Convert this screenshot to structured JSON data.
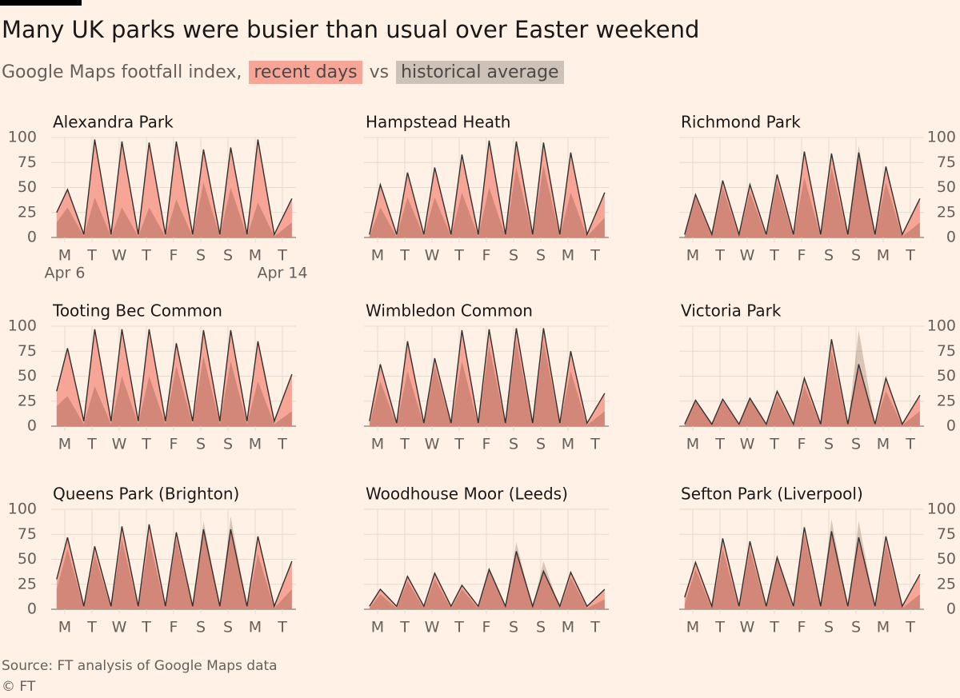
{
  "header": {
    "title": "Many UK parks were busier than usual over Easter weekend",
    "subtitle": "Google Maps footfall index,",
    "joiner": "vs",
    "legend": [
      {
        "name": "recent days",
        "color": "#f7a597"
      },
      {
        "name": "historical average",
        "color": "#cdc1b8"
      }
    ]
  },
  "chart_data": [
    {
      "type": "area",
      "title": "Alexandra Park",
      "y_axis": "left",
      "grid": true,
      "x": [
        0.2,
        0.6,
        1.2,
        1.6,
        2.2,
        2.6,
        3.2,
        3.6,
        4.2,
        4.6,
        5.2,
        5.6,
        6.2,
        6.6,
        7.2,
        7.6,
        8.2,
        8.85
      ],
      "recent": [
        25,
        48,
        3,
        98,
        3,
        96,
        3,
        95,
        3,
        96,
        3,
        88,
        3,
        90,
        3,
        98,
        3,
        39
      ],
      "historical": [
        15,
        30,
        1,
        40,
        1,
        30,
        1,
        30,
        1,
        38,
        1,
        55,
        1,
        50,
        1,
        35,
        1,
        15
      ],
      "xlim": [
        0,
        9
      ],
      "ylim": [
        0,
        100
      ],
      "yticks": [
        0,
        25,
        50,
        75,
        100
      ],
      "xticks": [
        {
          "value": 0.5,
          "label": "M"
        },
        {
          "value": 1.5,
          "label": "T"
        },
        {
          "value": 2.5,
          "label": "W"
        },
        {
          "value": 3.5,
          "label": "T"
        },
        {
          "value": 4.5,
          "label": "F"
        },
        {
          "value": 5.5,
          "label": "S"
        },
        {
          "value": 6.5,
          "label": "S"
        },
        {
          "value": 7.5,
          "label": "M"
        },
        {
          "value": 8.5,
          "label": "T"
        }
      ],
      "xtick_dates": [
        {
          "value": 0.5,
          "label": "Apr 6"
        },
        {
          "value": 8.5,
          "label": "Apr 14"
        }
      ]
    },
    {
      "type": "area",
      "title": "Hampstead Heath",
      "y_axis": "none",
      "grid": true,
      "x": [
        0.2,
        0.6,
        1.2,
        1.6,
        2.2,
        2.6,
        3.2,
        3.6,
        4.2,
        4.6,
        5.2,
        5.6,
        6.2,
        6.6,
        7.2,
        7.6,
        8.2,
        8.85
      ],
      "recent": [
        3,
        53,
        3,
        65,
        3,
        70,
        3,
        83,
        3,
        97,
        3,
        96,
        3,
        95,
        3,
        85,
        3,
        45
      ],
      "historical": [
        1,
        30,
        1,
        40,
        1,
        40,
        1,
        45,
        1,
        50,
        1,
        70,
        1,
        72,
        1,
        45,
        1,
        20
      ],
      "xlim": [
        0,
        9
      ],
      "ylim": [
        0,
        100
      ],
      "yticks": [
        0,
        25,
        50,
        75,
        100
      ],
      "xticks": [
        {
          "value": 0.5,
          "label": "M"
        },
        {
          "value": 1.5,
          "label": "T"
        },
        {
          "value": 2.5,
          "label": "W"
        },
        {
          "value": 3.5,
          "label": "T"
        },
        {
          "value": 4.5,
          "label": "F"
        },
        {
          "value": 5.5,
          "label": "S"
        },
        {
          "value": 6.5,
          "label": "S"
        },
        {
          "value": 7.5,
          "label": "M"
        },
        {
          "value": 8.5,
          "label": "T"
        }
      ]
    },
    {
      "type": "area",
      "title": "Richmond Park",
      "y_axis": "right",
      "grid": true,
      "x": [
        0.2,
        0.6,
        1.2,
        1.6,
        2.2,
        2.6,
        3.2,
        3.6,
        4.2,
        4.6,
        5.2,
        5.6,
        6.2,
        6.6,
        7.2,
        7.6,
        8.2,
        8.85
      ],
      "recent": [
        3,
        43,
        3,
        57,
        3,
        53,
        3,
        63,
        3,
        86,
        3,
        84,
        3,
        85,
        3,
        71,
        3,
        39
      ],
      "historical": [
        1,
        40,
        1,
        50,
        1,
        45,
        1,
        55,
        1,
        60,
        1,
        70,
        1,
        92,
        1,
        55,
        1,
        15
      ],
      "xlim": [
        0,
        9
      ],
      "ylim": [
        0,
        100
      ],
      "yticks": [
        0,
        25,
        50,
        75,
        100
      ],
      "xticks": [
        {
          "value": 0.5,
          "label": "M"
        },
        {
          "value": 1.5,
          "label": "T"
        },
        {
          "value": 2.5,
          "label": "W"
        },
        {
          "value": 3.5,
          "label": "T"
        },
        {
          "value": 4.5,
          "label": "F"
        },
        {
          "value": 5.5,
          "label": "S"
        },
        {
          "value": 6.5,
          "label": "S"
        },
        {
          "value": 7.5,
          "label": "M"
        },
        {
          "value": 8.5,
          "label": "T"
        }
      ]
    },
    {
      "type": "area",
      "title": "Tooting Bec Common",
      "y_axis": "left",
      "grid": true,
      "x": [
        0.2,
        0.6,
        1.2,
        1.6,
        2.2,
        2.6,
        3.2,
        3.6,
        4.2,
        4.6,
        5.2,
        5.6,
        6.2,
        6.6,
        7.2,
        7.6,
        8.2,
        8.85
      ],
      "recent": [
        35,
        78,
        5,
        97,
        5,
        97,
        5,
        97,
        5,
        83,
        5,
        96,
        5,
        96,
        5,
        85,
        5,
        52
      ],
      "historical": [
        20,
        30,
        2,
        40,
        2,
        50,
        2,
        50,
        2,
        60,
        2,
        70,
        2,
        65,
        2,
        45,
        2,
        15
      ],
      "xlim": [
        0,
        9
      ],
      "ylim": [
        0,
        100
      ],
      "yticks": [
        0,
        25,
        50,
        75,
        100
      ],
      "xticks": [
        {
          "value": 0.5,
          "label": "M"
        },
        {
          "value": 1.5,
          "label": "T"
        },
        {
          "value": 2.5,
          "label": "W"
        },
        {
          "value": 3.5,
          "label": "T"
        },
        {
          "value": 4.5,
          "label": "F"
        },
        {
          "value": 5.5,
          "label": "S"
        },
        {
          "value": 6.5,
          "label": "S"
        },
        {
          "value": 7.5,
          "label": "M"
        },
        {
          "value": 8.5,
          "label": "T"
        }
      ]
    },
    {
      "type": "area",
      "title": "Wimbledon Common",
      "y_axis": "none",
      "grid": true,
      "x": [
        0.2,
        0.6,
        1.2,
        1.6,
        2.2,
        2.6,
        3.2,
        3.6,
        4.2,
        4.6,
        5.2,
        5.6,
        6.2,
        6.6,
        7.2,
        7.6,
        8.2,
        8.85
      ],
      "recent": [
        5,
        62,
        3,
        85,
        3,
        68,
        3,
        96,
        3,
        97,
        3,
        98,
        3,
        98,
        3,
        75,
        3,
        33
      ],
      "historical": [
        1,
        45,
        1,
        55,
        1,
        60,
        1,
        65,
        1,
        80,
        1,
        85,
        1,
        85,
        1,
        55,
        1,
        15
      ],
      "xlim": [
        0,
        9
      ],
      "ylim": [
        0,
        100
      ],
      "yticks": [
        0,
        25,
        50,
        75,
        100
      ],
      "xticks": [
        {
          "value": 0.5,
          "label": "M"
        },
        {
          "value": 1.5,
          "label": "T"
        },
        {
          "value": 2.5,
          "label": "W"
        },
        {
          "value": 3.5,
          "label": "T"
        },
        {
          "value": 4.5,
          "label": "F"
        },
        {
          "value": 5.5,
          "label": "S"
        },
        {
          "value": 6.5,
          "label": "S"
        },
        {
          "value": 7.5,
          "label": "M"
        },
        {
          "value": 8.5,
          "label": "T"
        }
      ]
    },
    {
      "type": "area",
      "title": "Victoria Park",
      "y_axis": "right",
      "grid": true,
      "x": [
        0.2,
        0.6,
        1.2,
        1.6,
        2.2,
        2.6,
        3.2,
        3.6,
        4.2,
        4.6,
        5.2,
        5.6,
        6.2,
        6.6,
        7.2,
        7.6,
        8.2,
        8.85
      ],
      "recent": [
        2,
        26,
        2,
        27,
        2,
        28,
        2,
        35,
        2,
        48,
        2,
        87,
        2,
        62,
        2,
        48,
        2,
        31
      ],
      "historical": [
        1,
        25,
        1,
        25,
        1,
        27,
        1,
        30,
        1,
        40,
        1,
        75,
        1,
        96,
        1,
        35,
        1,
        15
      ],
      "xlim": [
        0,
        9
      ],
      "ylim": [
        0,
        100
      ],
      "yticks": [
        0,
        25,
        50,
        75,
        100
      ],
      "xticks": [
        {
          "value": 0.5,
          "label": "M"
        },
        {
          "value": 1.5,
          "label": "T"
        },
        {
          "value": 2.5,
          "label": "W"
        },
        {
          "value": 3.5,
          "label": "T"
        },
        {
          "value": 4.5,
          "label": "F"
        },
        {
          "value": 5.5,
          "label": "S"
        },
        {
          "value": 6.5,
          "label": "S"
        },
        {
          "value": 7.5,
          "label": "M"
        },
        {
          "value": 8.5,
          "label": "T"
        }
      ]
    },
    {
      "type": "area",
      "title": "Queens Park (Brighton)",
      "y_axis": "left",
      "grid": true,
      "x": [
        0.2,
        0.6,
        1.2,
        1.6,
        2.2,
        2.6,
        3.2,
        3.6,
        4.2,
        4.6,
        5.2,
        5.6,
        6.2,
        6.6,
        7.2,
        7.6,
        8.2,
        8.85
      ],
      "recent": [
        30,
        72,
        3,
        63,
        3,
        83,
        3,
        85,
        3,
        77,
        3,
        80,
        3,
        80,
        3,
        73,
        3,
        48
      ],
      "historical": [
        20,
        60,
        1,
        55,
        1,
        70,
        1,
        70,
        1,
        70,
        1,
        88,
        1,
        93,
        1,
        55,
        1,
        20
      ],
      "xlim": [
        0,
        9
      ],
      "ylim": [
        0,
        100
      ],
      "yticks": [
        0,
        25,
        50,
        75,
        100
      ],
      "xticks": [
        {
          "value": 0.5,
          "label": "M"
        },
        {
          "value": 1.5,
          "label": "T"
        },
        {
          "value": 2.5,
          "label": "W"
        },
        {
          "value": 3.5,
          "label": "T"
        },
        {
          "value": 4.5,
          "label": "F"
        },
        {
          "value": 5.5,
          "label": "S"
        },
        {
          "value": 6.5,
          "label": "S"
        },
        {
          "value": 7.5,
          "label": "M"
        },
        {
          "value": 8.5,
          "label": "T"
        }
      ]
    },
    {
      "type": "area",
      "title": "Woodhouse Moor (Leeds)",
      "y_axis": "none",
      "grid": true,
      "x": [
        0.2,
        0.6,
        1.2,
        1.6,
        2.2,
        2.6,
        3.2,
        3.6,
        4.2,
        4.6,
        5.2,
        5.6,
        6.2,
        6.6,
        7.2,
        7.6,
        8.2,
        8.85
      ],
      "recent": [
        3,
        20,
        3,
        33,
        3,
        36,
        3,
        24,
        3,
        40,
        3,
        58,
        3,
        38,
        3,
        37,
        3,
        20
      ],
      "historical": [
        1,
        15,
        1,
        28,
        1,
        30,
        1,
        20,
        1,
        40,
        1,
        67,
        1,
        48,
        1,
        32,
        1,
        10
      ],
      "xlim": [
        0,
        9
      ],
      "ylim": [
        0,
        100
      ],
      "yticks": [
        0,
        25,
        50,
        75,
        100
      ],
      "xticks": [
        {
          "value": 0.5,
          "label": "M"
        },
        {
          "value": 1.5,
          "label": "T"
        },
        {
          "value": 2.5,
          "label": "W"
        },
        {
          "value": 3.5,
          "label": "T"
        },
        {
          "value": 4.5,
          "label": "F"
        },
        {
          "value": 5.5,
          "label": "S"
        },
        {
          "value": 6.5,
          "label": "S"
        },
        {
          "value": 7.5,
          "label": "M"
        },
        {
          "value": 8.5,
          "label": "T"
        }
      ]
    },
    {
      "type": "area",
      "title": "Sefton Park (Liverpool)",
      "y_axis": "right",
      "grid": true,
      "x": [
        0.2,
        0.6,
        1.2,
        1.6,
        2.2,
        2.6,
        3.2,
        3.6,
        4.2,
        4.6,
        5.2,
        5.6,
        6.2,
        6.6,
        7.2,
        7.6,
        8.2,
        8.85
      ],
      "recent": [
        12,
        47,
        3,
        71,
        3,
        68,
        3,
        52,
        3,
        82,
        3,
        78,
        3,
        72,
        3,
        73,
        3,
        35
      ],
      "historical": [
        5,
        40,
        1,
        60,
        1,
        60,
        1,
        50,
        1,
        75,
        1,
        90,
        1,
        88,
        1,
        65,
        1,
        15
      ],
      "xlim": [
        0,
        9
      ],
      "ylim": [
        0,
        100
      ],
      "yticks": [
        0,
        25,
        50,
        75,
        100
      ],
      "xticks": [
        {
          "value": 0.5,
          "label": "M"
        },
        {
          "value": 1.5,
          "label": "T"
        },
        {
          "value": 2.5,
          "label": "W"
        },
        {
          "value": 3.5,
          "label": "T"
        },
        {
          "value": 4.5,
          "label": "F"
        },
        {
          "value": 5.5,
          "label": "S"
        },
        {
          "value": 6.5,
          "label": "S"
        },
        {
          "value": 7.5,
          "label": "M"
        },
        {
          "value": 8.5,
          "label": "T"
        }
      ]
    }
  ],
  "footer": {
    "source": "Source: FT analysis of Google Maps data",
    "copyright": "© FT"
  }
}
